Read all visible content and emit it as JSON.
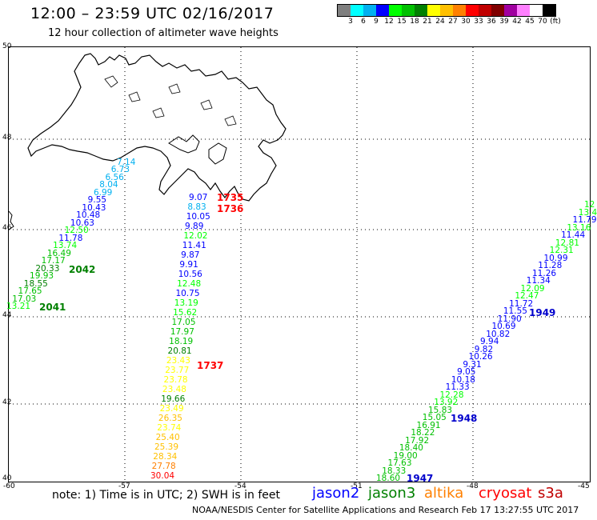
{
  "header": {
    "title": "12:00 – 23:59 UTC 02/16/2017",
    "subtitle": "12 hour collection of altimeter wave heights"
  },
  "legend": {
    "colors": [
      "#7f7f7f",
      "#00ffff",
      "#00b0f0",
      "#0000ff",
      "#00ff00",
      "#00c000",
      "#008000",
      "#ffff00",
      "#ffc000",
      "#ff8000",
      "#ff0000",
      "#c00000",
      "#800000",
      "#a000a0",
      "#ff80ff",
      "#ffffff",
      "#000000"
    ],
    "labels": [
      "3",
      "6",
      "9",
      "12",
      "15",
      "18",
      "21",
      "24",
      "27",
      "30",
      "33",
      "36",
      "39",
      "42",
      "45",
      "70",
      "(ft)"
    ]
  },
  "axes": {
    "lat_labels": [
      "50",
      "48",
      "46",
      "44",
      "42",
      "40"
    ],
    "lon_labels": [
      "-60",
      "-57",
      "-54",
      "-51",
      "-48",
      "-45"
    ]
  },
  "tracks": {
    "left": [
      "7.14",
      "6.73",
      "6.56",
      "8.04",
      "6.99",
      "9.55",
      "10.43",
      "10.48",
      "10.63",
      "12.50",
      "11.78",
      "13.74",
      "16.49",
      "17.17",
      "20.33",
      "19.93",
      "18.55",
      "17.65",
      "17.03",
      "13.21"
    ],
    "left_colors": [
      "#00b0f0",
      "#00b0f0",
      "#00b0f0",
      "#00b0f0",
      "#00b0f0",
      "#0000ff",
      "#0000ff",
      "#0000ff",
      "#0000ff",
      "#00ff00",
      "#0000ff",
      "#00ff00",
      "#00c000",
      "#00c000",
      "#008000",
      "#00c000",
      "#008000",
      "#00c000",
      "#00c000",
      "#00ff00"
    ],
    "middle": [
      "9.07",
      "8.83",
      "10.05",
      "9.89",
      "12.02",
      "11.41",
      "9.87",
      "9.91",
      "10.56",
      "12.48",
      "10.75",
      "13.19",
      "15.62",
      "17.05",
      "17.97",
      "18.19",
      "20.81",
      "23.43",
      "23.77",
      "23.78",
      "23.48",
      "19.66",
      "23.49",
      "26.35",
      "23.74",
      "25.40",
      "25.39",
      "28.34",
      "27.78",
      "30.04"
    ],
    "middle_colors": [
      "#0000ff",
      "#00b0f0",
      "#0000ff",
      "#0000ff",
      "#00ff00",
      "#0000ff",
      "#0000ff",
      "#0000ff",
      "#0000ff",
      "#00ff00",
      "#0000ff",
      "#00ff00",
      "#00ff00",
      "#00c000",
      "#00c000",
      "#00c000",
      "#008000",
      "#ffff00",
      "#ffff00",
      "#ffff00",
      "#ffff00",
      "#008000",
      "#ffff00",
      "#ffc000",
      "#ffff00",
      "#ffc000",
      "#ffc000",
      "#ffc000",
      "#ff8000",
      "#ff0000"
    ],
    "right": [
      "12",
      "13.4",
      "11.79",
      "13.16",
      "11.44",
      "12.81",
      "12.31",
      "10.99",
      "11.28",
      "11.26",
      "11.34",
      "12.09",
      "12.47",
      "11.72",
      "11.55",
      "11.90",
      "10.69",
      "10.82",
      "9.94",
      "9.82",
      "10.26",
      "9.31",
      "9.05",
      "10.18",
      "11.33",
      "12.28",
      "13.92",
      "15.83",
      "15.05",
      "16.91",
      "18.22",
      "17.92",
      "18.40",
      "19.00",
      "17.63",
      "18.33",
      "18.60"
    ],
    "right_colors": [
      "#00ff00",
      "#00ff00",
      "#0000ff",
      "#00ff00",
      "#0000ff",
      "#00ff00",
      "#00ff00",
      "#0000ff",
      "#0000ff",
      "#0000ff",
      "#0000ff",
      "#00ff00",
      "#00ff00",
      "#0000ff",
      "#0000ff",
      "#0000ff",
      "#0000ff",
      "#0000ff",
      "#0000ff",
      "#0000ff",
      "#0000ff",
      "#0000ff",
      "#0000ff",
      "#0000ff",
      "#0000ff",
      "#00ff00",
      "#00ff00",
      "#00c000",
      "#00c000",
      "#00c000",
      "#00c000",
      "#00c000",
      "#00c000",
      "#00c000",
      "#00c000",
      "#00c000",
      "#00c000"
    ]
  },
  "time_labels": {
    "t1735": "1735",
    "t1736": "1736",
    "t1737": "1737",
    "t2042": "2042",
    "t2041": "2041",
    "t1949": "1949",
    "t1948": "1948",
    "t1947": "1947"
  },
  "note": "note: 1) Time is in UTC; 2) SWH is in feet",
  "satellites": [
    {
      "name": "jason2",
      "color": "#0000ff"
    },
    {
      "name": "jason3",
      "color": "#008000"
    },
    {
      "name": "altika",
      "color": "#ff8000"
    },
    {
      "name": "cryosat",
      "color": "#ff0000"
    },
    {
      "name": "s3a",
      "color": "#c00000"
    }
  ],
  "footer": "NOAA/NESDIS Center for Satellite Applications and Research    Feb 17 13:27:55 UTC 2017"
}
